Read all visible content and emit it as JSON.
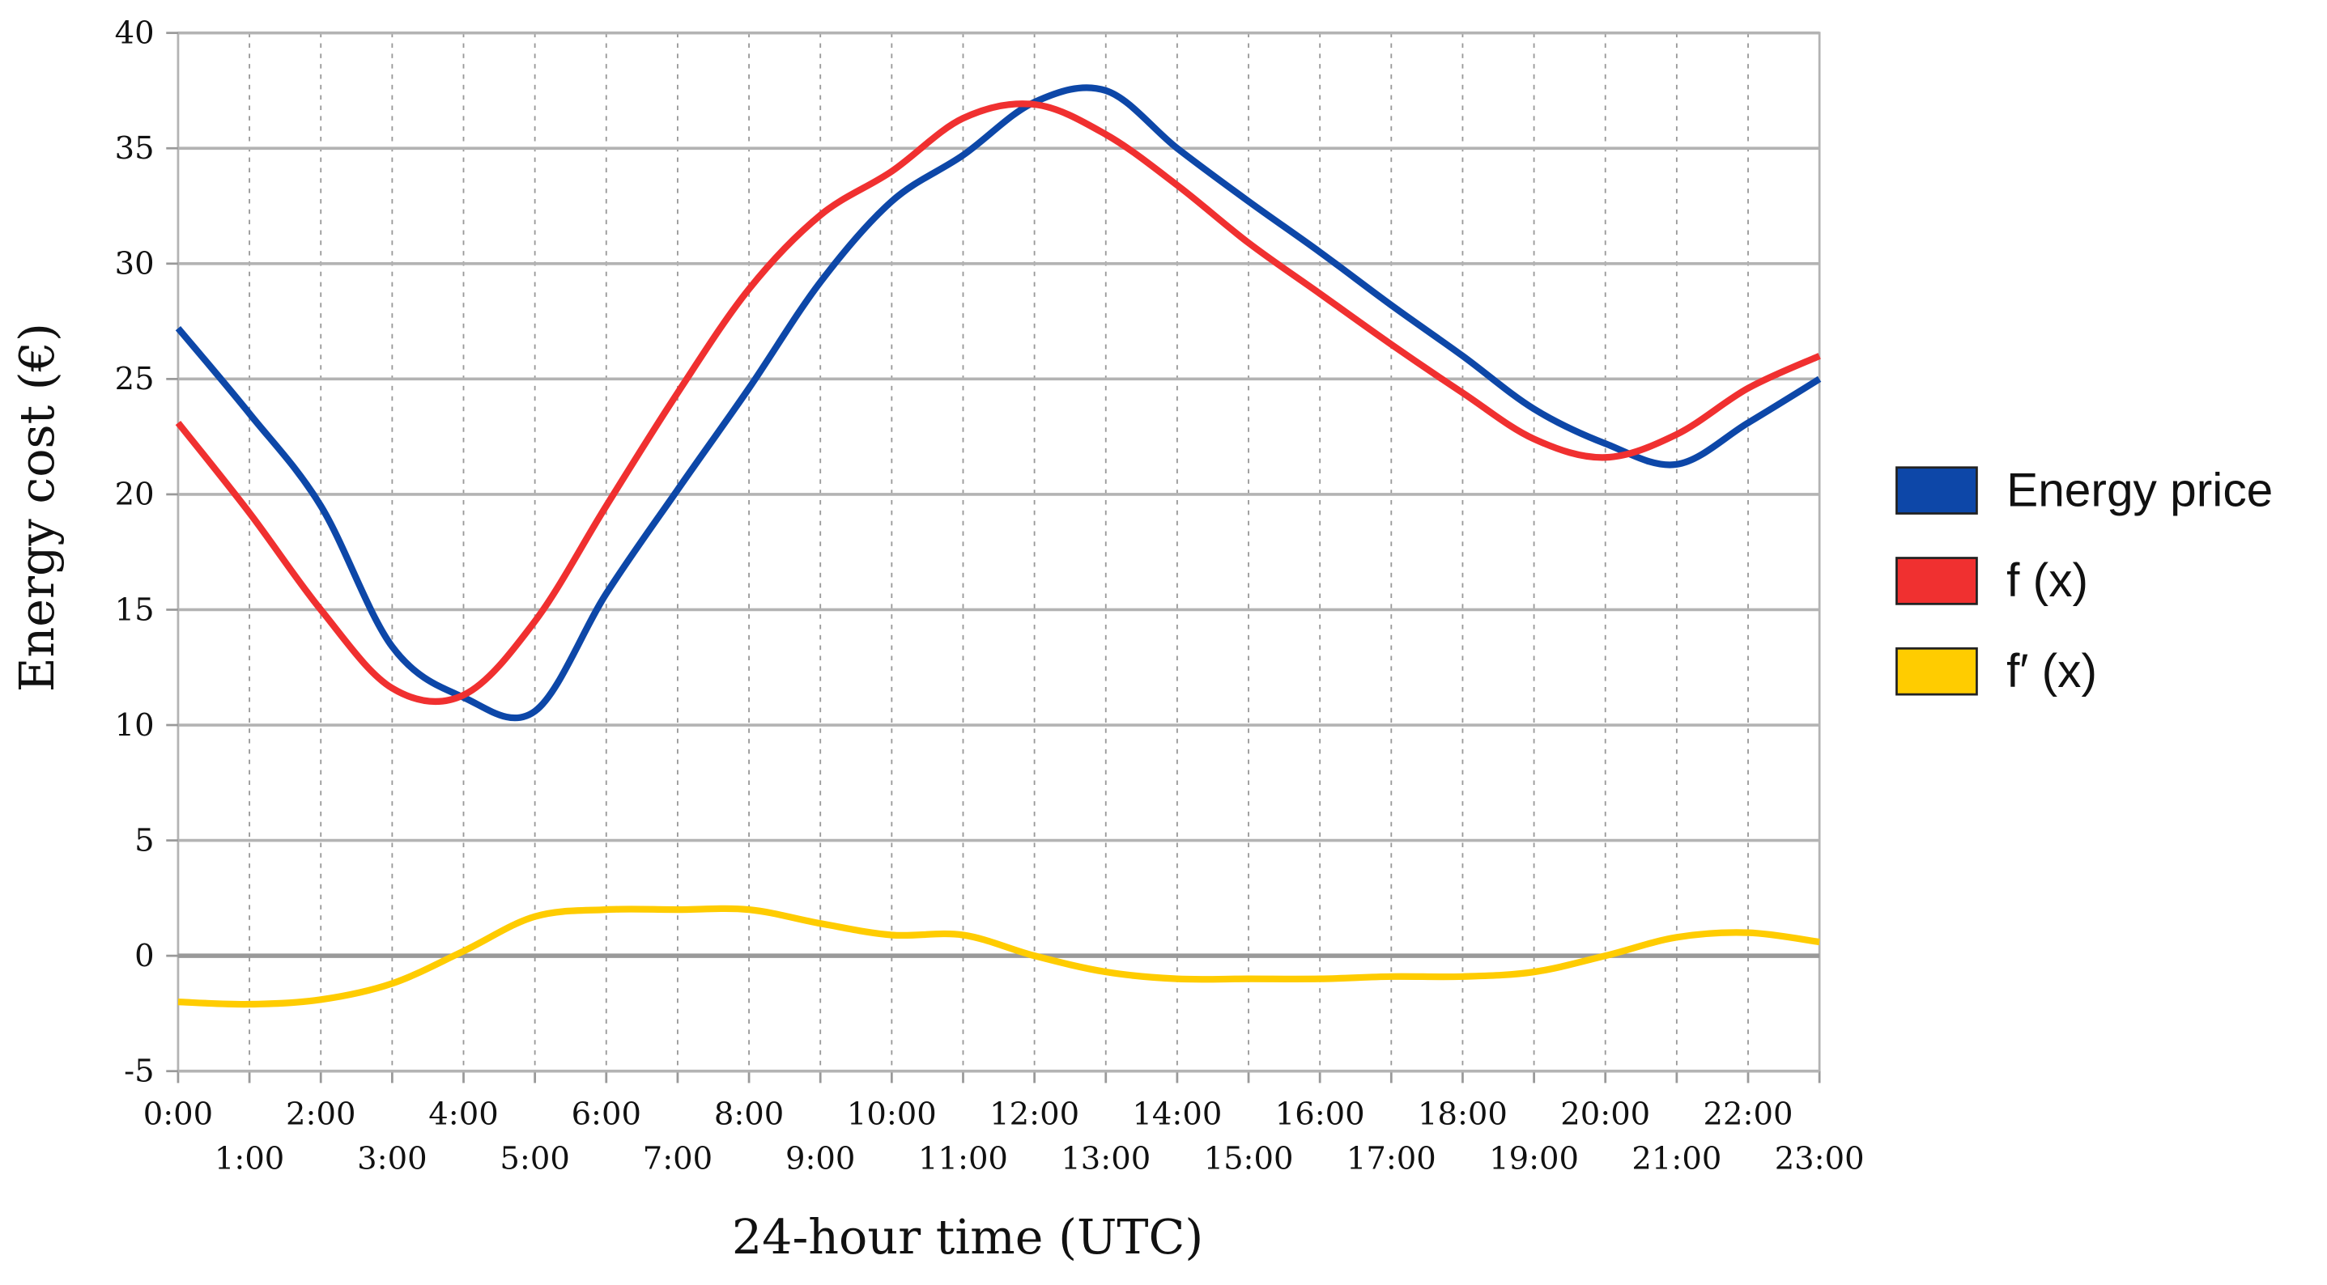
{
  "chart_data": {
    "type": "line",
    "x_label": "24-hour time (UTC)",
    "y_label": "Energy cost (€)",
    "categories": [
      "0:00",
      "1:00",
      "2:00",
      "3:00",
      "4:00",
      "5:00",
      "6:00",
      "7:00",
      "8:00",
      "9:00",
      "10:00",
      "11:00",
      "12:00",
      "13:00",
      "14:00",
      "15:00",
      "16:00",
      "17:00",
      "18:00",
      "19:00",
      "20:00",
      "21:00",
      "22:00",
      "23:00"
    ],
    "series": [
      {
        "name": "Energy price",
        "color": "#0d47a8",
        "values": [
          27.2,
          23.5,
          19.5,
          13.4,
          11.2,
          10.6,
          15.7,
          20.2,
          24.6,
          29.2,
          32.7,
          34.7,
          37.0,
          37.5,
          35.0,
          32.7,
          30.5,
          28.2,
          26.0,
          23.7,
          22.2,
          21.3,
          23.1,
          25.0
        ]
      },
      {
        "name": "f (x)",
        "color": "#f03030",
        "values": [
          23.1,
          19.2,
          15.0,
          11.6,
          11.3,
          14.5,
          19.5,
          24.4,
          28.9,
          32.1,
          34.0,
          36.3,
          36.9,
          35.6,
          33.4,
          30.9,
          28.7,
          26.5,
          24.4,
          22.4,
          21.6,
          22.6,
          24.6,
          26.0
        ]
      },
      {
        "name": "f′ (x)",
        "color": "#ffcc00",
        "values": [
          -2.0,
          -2.1,
          -1.9,
          -1.2,
          0.2,
          1.7,
          2.0,
          2.0,
          2.0,
          1.4,
          0.9,
          0.9,
          0.0,
          -0.7,
          -1.0,
          -1.0,
          -1.0,
          -0.9,
          -0.9,
          -0.7,
          0.0,
          0.8,
          1.0,
          0.6
        ]
      }
    ],
    "ylim": [
      -5,
      40
    ],
    "yticks": [
      -5,
      0,
      5,
      10,
      15,
      20,
      25,
      30,
      35,
      40
    ],
    "grid": true,
    "legend": "right"
  }
}
